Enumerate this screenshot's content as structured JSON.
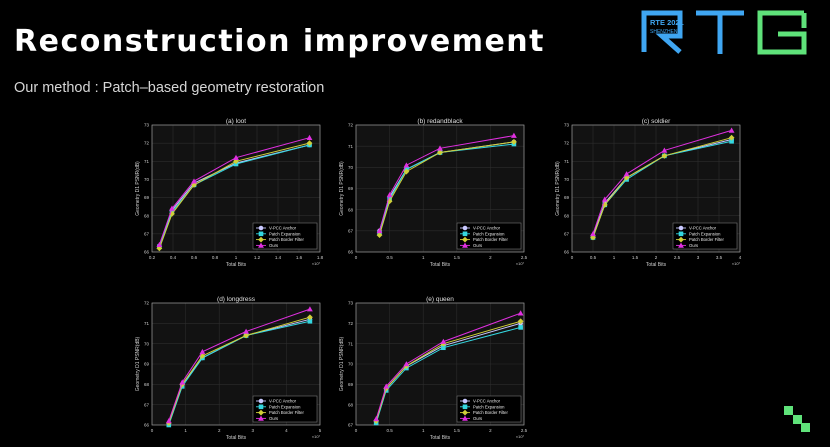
{
  "slide": {
    "title": "Reconstruction improvement",
    "subtitle": "Our method : Patch–based geometry restoration",
    "logo": {
      "event_text": "RTE 2021",
      "sub_text": "SHENZHEN",
      "brand_letters": "RTE"
    }
  },
  "colors": {
    "background": "#000000",
    "axes_bg": "#121212",
    "axis_line": "#9a9a9a",
    "text": "#cfcfcf",
    "vpcc": "#c8c8ff",
    "patch_expansion": "#34d7e0",
    "patch_border": "#cfcf38",
    "ours": "#e030e0",
    "logo_blue": "#3fa6f2",
    "logo_green": "#5fe27a"
  },
  "chart_data": [
    {
      "type": "line",
      "title": "(a) loot",
      "xlabel": "Total Bits",
      "ylabel": "Geometry D1 PSNR(dB)",
      "x_exponent": "×10⁷",
      "xlim": [
        0.2,
        1.8
      ],
      "xticks": [
        0.2,
        0.4,
        0.6,
        0.8,
        1,
        1.2,
        1.4,
        1.6,
        1.8
      ],
      "ylim": [
        66,
        73
      ],
      "yticks": [
        66,
        67,
        68,
        69,
        70,
        71,
        72,
        73
      ],
      "grid": true,
      "legend_position": "lower-right",
      "series": [
        {
          "name": "V-PCC Anchor",
          "x": [
            0.27,
            0.39,
            0.6,
            1.0,
            1.7
          ],
          "y": [
            66.3,
            68.3,
            69.8,
            70.9,
            71.9
          ]
        },
        {
          "name": "Patch Expansion",
          "x": [
            0.27,
            0.39,
            0.6,
            1.0,
            1.7
          ],
          "y": [
            66.3,
            68.2,
            69.7,
            70.85,
            71.9
          ]
        },
        {
          "name": "Patch Border Filter",
          "x": [
            0.27,
            0.39,
            0.6,
            1.0,
            1.7
          ],
          "y": [
            66.2,
            68.1,
            69.7,
            71.0,
            72.0
          ]
        },
        {
          "name": "Ours",
          "x": [
            0.27,
            0.39,
            0.6,
            1.0,
            1.7
          ],
          "y": [
            66.4,
            68.4,
            69.9,
            71.2,
            72.3
          ]
        }
      ]
    },
    {
      "type": "line",
      "title": "(b) redandblack",
      "xlabel": "Total Bits",
      "ylabel": "Geometry D1 PSNR(dB)",
      "x_exponent": "×10⁷",
      "xlim": [
        0,
        2.5
      ],
      "xticks": [
        0,
        0.5,
        1,
        1.5,
        2,
        2.5
      ],
      "ylim": [
        66,
        72
      ],
      "yticks": [
        66,
        67,
        68,
        69,
        70,
        71,
        72
      ],
      "grid": true,
      "legend_position": "lower-right",
      "series": [
        {
          "name": "V-PCC Anchor",
          "x": [
            0.35,
            0.5,
            0.75,
            1.25,
            2.35
          ],
          "y": [
            67.0,
            68.6,
            69.9,
            70.7,
            71.2
          ]
        },
        {
          "name": "Patch Expansion",
          "x": [
            0.35,
            0.5,
            0.75,
            1.25,
            2.35
          ],
          "y": [
            66.9,
            68.5,
            69.9,
            70.7,
            71.1
          ]
        },
        {
          "name": "Patch Border Filter",
          "x": [
            0.35,
            0.5,
            0.75,
            1.25,
            2.35
          ],
          "y": [
            66.8,
            68.4,
            69.8,
            70.7,
            71.2
          ]
        },
        {
          "name": "Ours",
          "x": [
            0.35,
            0.5,
            0.75,
            1.25,
            2.35
          ],
          "y": [
            67.0,
            68.7,
            70.1,
            70.9,
            71.5
          ]
        }
      ]
    },
    {
      "type": "line",
      "title": "(c) soldier",
      "xlabel": "Total Bits",
      "ylabel": "Geometry D1 PSNR(dB)",
      "x_exponent": "×10⁷",
      "xlim": [
        0,
        4
      ],
      "xticks": [
        0,
        0.5,
        1,
        1.5,
        2,
        2.5,
        3,
        3.5,
        4
      ],
      "ylim": [
        66,
        73
      ],
      "yticks": [
        66,
        67,
        68,
        69,
        70,
        71,
        72,
        73
      ],
      "grid": true,
      "legend_position": "lower-right",
      "series": [
        {
          "name": "V-PCC Anchor",
          "x": [
            0.5,
            0.78,
            1.3,
            2.2,
            3.8
          ],
          "y": [
            66.9,
            68.7,
            70.1,
            71.3,
            72.2
          ]
        },
        {
          "name": "Patch Expansion",
          "x": [
            0.5,
            0.78,
            1.3,
            2.2,
            3.8
          ],
          "y": [
            66.8,
            68.6,
            70.0,
            71.3,
            72.1
          ]
        },
        {
          "name": "Patch Border Filter",
          "x": [
            0.5,
            0.78,
            1.3,
            2.2,
            3.8
          ],
          "y": [
            66.8,
            68.6,
            70.1,
            71.3,
            72.3
          ]
        },
        {
          "name": "Ours",
          "x": [
            0.5,
            0.78,
            1.3,
            2.2,
            3.8
          ],
          "y": [
            67.0,
            68.9,
            70.3,
            71.6,
            72.7
          ]
        }
      ]
    },
    {
      "type": "line",
      "title": "(d) longdress",
      "xlabel": "Total Bits",
      "ylabel": "Geometry D1 PSNR(dB)",
      "x_exponent": "×10⁷",
      "xlim": [
        0,
        5
      ],
      "xticks": [
        0,
        1,
        2,
        3,
        4,
        5
      ],
      "ylim": [
        66,
        72
      ],
      "yticks": [
        66,
        67,
        68,
        69,
        70,
        71,
        72
      ],
      "grid": true,
      "legend_position": "lower-right",
      "series": [
        {
          "name": "V-PCC Anchor",
          "x": [
            0.5,
            0.9,
            1.5,
            2.8,
            4.7
          ],
          "y": [
            66.1,
            68.0,
            69.3,
            70.4,
            71.2
          ]
        },
        {
          "name": "Patch Expansion",
          "x": [
            0.5,
            0.9,
            1.5,
            2.8,
            4.7
          ],
          "y": [
            66.0,
            67.9,
            69.3,
            70.4,
            71.1
          ]
        },
        {
          "name": "Patch Border Filter",
          "x": [
            0.5,
            0.9,
            1.5,
            2.8,
            4.7
          ],
          "y": [
            66.1,
            68.0,
            69.4,
            70.4,
            71.3
          ]
        },
        {
          "name": "Ours",
          "x": [
            0.5,
            0.9,
            1.5,
            2.8,
            4.7
          ],
          "y": [
            66.2,
            68.1,
            69.6,
            70.6,
            71.7
          ]
        }
      ]
    },
    {
      "type": "line",
      "title": "(e) queen",
      "xlabel": "Total Bits",
      "ylabel": "Geometry D1 PSNR(dB)",
      "x_exponent": "×10⁷",
      "xlim": [
        0,
        2.5
      ],
      "xticks": [
        0,
        0.5,
        1,
        1.5,
        2,
        2.5
      ],
      "ylim": [
        67,
        73
      ],
      "yticks": [
        67,
        68,
        69,
        70,
        71,
        72,
        73
      ],
      "grid": true,
      "legend_position": "lower-right",
      "series": [
        {
          "name": "V-PCC Anchor",
          "x": [
            0.3,
            0.45,
            0.75,
            1.3,
            2.45
          ],
          "y": [
            67.2,
            68.8,
            69.9,
            70.9,
            72.0
          ]
        },
        {
          "name": "Patch Expansion",
          "x": [
            0.3,
            0.45,
            0.75,
            1.3,
            2.45
          ],
          "y": [
            67.1,
            68.7,
            69.8,
            70.8,
            71.8
          ]
        },
        {
          "name": "Patch Border Filter",
          "x": [
            0.3,
            0.45,
            0.75,
            1.3,
            2.45
          ],
          "y": [
            67.2,
            68.8,
            69.9,
            71.0,
            72.1
          ]
        },
        {
          "name": "Ours",
          "x": [
            0.3,
            0.45,
            0.75,
            1.3,
            2.45
          ],
          "y": [
            67.3,
            68.9,
            70.0,
            71.1,
            72.5
          ]
        }
      ]
    }
  ]
}
